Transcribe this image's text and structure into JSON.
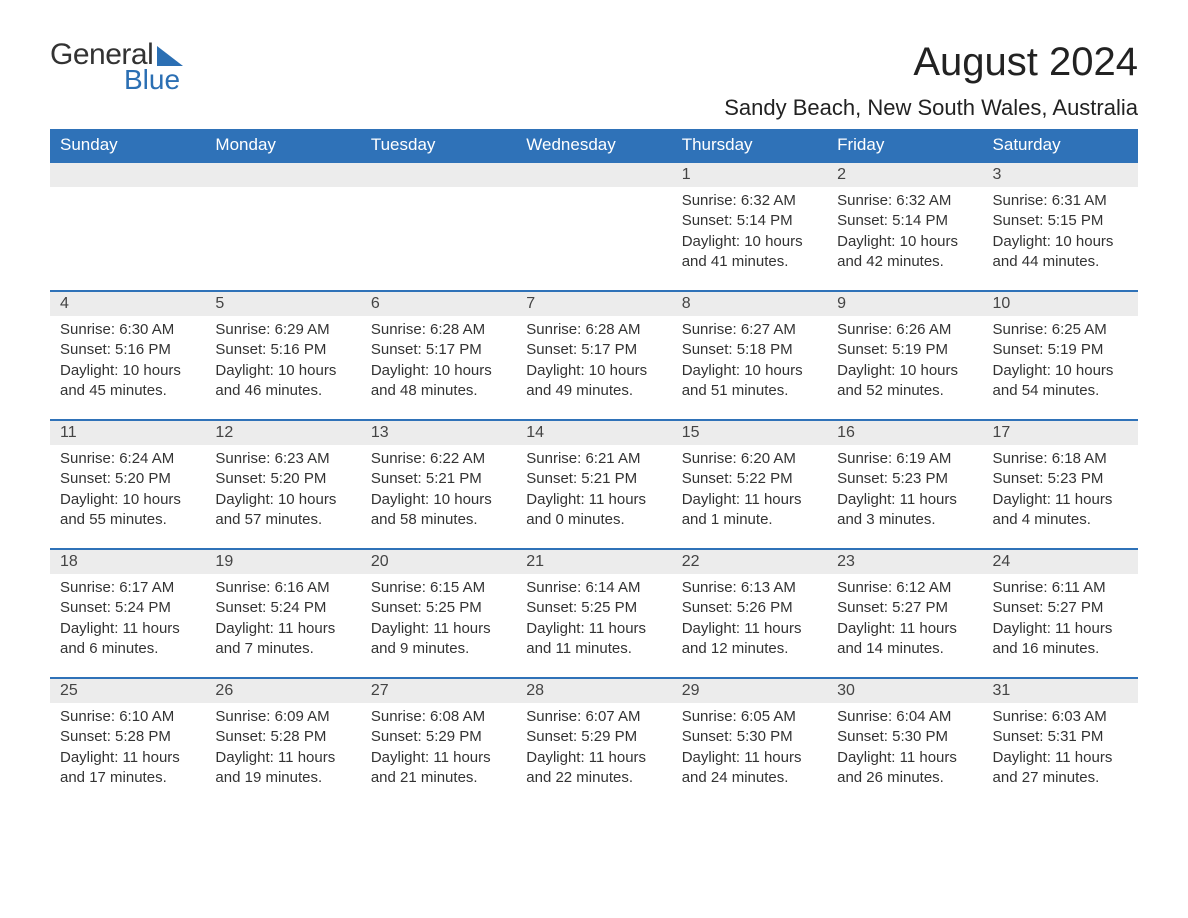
{
  "logo": {
    "text1": "General",
    "text2": "Blue",
    "accent_color": "#2b6fb3"
  },
  "title": "August 2024",
  "location": "Sandy Beach, New South Wales, Australia",
  "header_bg": "#2f72b8",
  "header_fg": "#ffffff",
  "daynum_bg": "#ececec",
  "border_color": "#2f72b8",
  "text_color": "#333333",
  "font_family": "Arial",
  "columns": [
    "Sunday",
    "Monday",
    "Tuesday",
    "Wednesday",
    "Thursday",
    "Friday",
    "Saturday"
  ],
  "weeks": [
    [
      null,
      null,
      null,
      null,
      {
        "n": "1",
        "sunrise": "6:32 AM",
        "sunset": "5:14 PM",
        "daylight": "10 hours and 41 minutes."
      },
      {
        "n": "2",
        "sunrise": "6:32 AM",
        "sunset": "5:14 PM",
        "daylight": "10 hours and 42 minutes."
      },
      {
        "n": "3",
        "sunrise": "6:31 AM",
        "sunset": "5:15 PM",
        "daylight": "10 hours and 44 minutes."
      }
    ],
    [
      {
        "n": "4",
        "sunrise": "6:30 AM",
        "sunset": "5:16 PM",
        "daylight": "10 hours and 45 minutes."
      },
      {
        "n": "5",
        "sunrise": "6:29 AM",
        "sunset": "5:16 PM",
        "daylight": "10 hours and 46 minutes."
      },
      {
        "n": "6",
        "sunrise": "6:28 AM",
        "sunset": "5:17 PM",
        "daylight": "10 hours and 48 minutes."
      },
      {
        "n": "7",
        "sunrise": "6:28 AM",
        "sunset": "5:17 PM",
        "daylight": "10 hours and 49 minutes."
      },
      {
        "n": "8",
        "sunrise": "6:27 AM",
        "sunset": "5:18 PM",
        "daylight": "10 hours and 51 minutes."
      },
      {
        "n": "9",
        "sunrise": "6:26 AM",
        "sunset": "5:19 PM",
        "daylight": "10 hours and 52 minutes."
      },
      {
        "n": "10",
        "sunrise": "6:25 AM",
        "sunset": "5:19 PM",
        "daylight": "10 hours and 54 minutes."
      }
    ],
    [
      {
        "n": "11",
        "sunrise": "6:24 AM",
        "sunset": "5:20 PM",
        "daylight": "10 hours and 55 minutes."
      },
      {
        "n": "12",
        "sunrise": "6:23 AM",
        "sunset": "5:20 PM",
        "daylight": "10 hours and 57 minutes."
      },
      {
        "n": "13",
        "sunrise": "6:22 AM",
        "sunset": "5:21 PM",
        "daylight": "10 hours and 58 minutes."
      },
      {
        "n": "14",
        "sunrise": "6:21 AM",
        "sunset": "5:21 PM",
        "daylight": "11 hours and 0 minutes."
      },
      {
        "n": "15",
        "sunrise": "6:20 AM",
        "sunset": "5:22 PM",
        "daylight": "11 hours and 1 minute."
      },
      {
        "n": "16",
        "sunrise": "6:19 AM",
        "sunset": "5:23 PM",
        "daylight": "11 hours and 3 minutes."
      },
      {
        "n": "17",
        "sunrise": "6:18 AM",
        "sunset": "5:23 PM",
        "daylight": "11 hours and 4 minutes."
      }
    ],
    [
      {
        "n": "18",
        "sunrise": "6:17 AM",
        "sunset": "5:24 PM",
        "daylight": "11 hours and 6 minutes."
      },
      {
        "n": "19",
        "sunrise": "6:16 AM",
        "sunset": "5:24 PM",
        "daylight": "11 hours and 7 minutes."
      },
      {
        "n": "20",
        "sunrise": "6:15 AM",
        "sunset": "5:25 PM",
        "daylight": "11 hours and 9 minutes."
      },
      {
        "n": "21",
        "sunrise": "6:14 AM",
        "sunset": "5:25 PM",
        "daylight": "11 hours and 11 minutes."
      },
      {
        "n": "22",
        "sunrise": "6:13 AM",
        "sunset": "5:26 PM",
        "daylight": "11 hours and 12 minutes."
      },
      {
        "n": "23",
        "sunrise": "6:12 AM",
        "sunset": "5:27 PM",
        "daylight": "11 hours and 14 minutes."
      },
      {
        "n": "24",
        "sunrise": "6:11 AM",
        "sunset": "5:27 PM",
        "daylight": "11 hours and 16 minutes."
      }
    ],
    [
      {
        "n": "25",
        "sunrise": "6:10 AM",
        "sunset": "5:28 PM",
        "daylight": "11 hours and 17 minutes."
      },
      {
        "n": "26",
        "sunrise": "6:09 AM",
        "sunset": "5:28 PM",
        "daylight": "11 hours and 19 minutes."
      },
      {
        "n": "27",
        "sunrise": "6:08 AM",
        "sunset": "5:29 PM",
        "daylight": "11 hours and 21 minutes."
      },
      {
        "n": "28",
        "sunrise": "6:07 AM",
        "sunset": "5:29 PM",
        "daylight": "11 hours and 22 minutes."
      },
      {
        "n": "29",
        "sunrise": "6:05 AM",
        "sunset": "5:30 PM",
        "daylight": "11 hours and 24 minutes."
      },
      {
        "n": "30",
        "sunrise": "6:04 AM",
        "sunset": "5:30 PM",
        "daylight": "11 hours and 26 minutes."
      },
      {
        "n": "31",
        "sunrise": "6:03 AM",
        "sunset": "5:31 PM",
        "daylight": "11 hours and 27 minutes."
      }
    ]
  ],
  "labels": {
    "sunrise": "Sunrise: ",
    "sunset": "Sunset: ",
    "daylight": "Daylight: "
  }
}
